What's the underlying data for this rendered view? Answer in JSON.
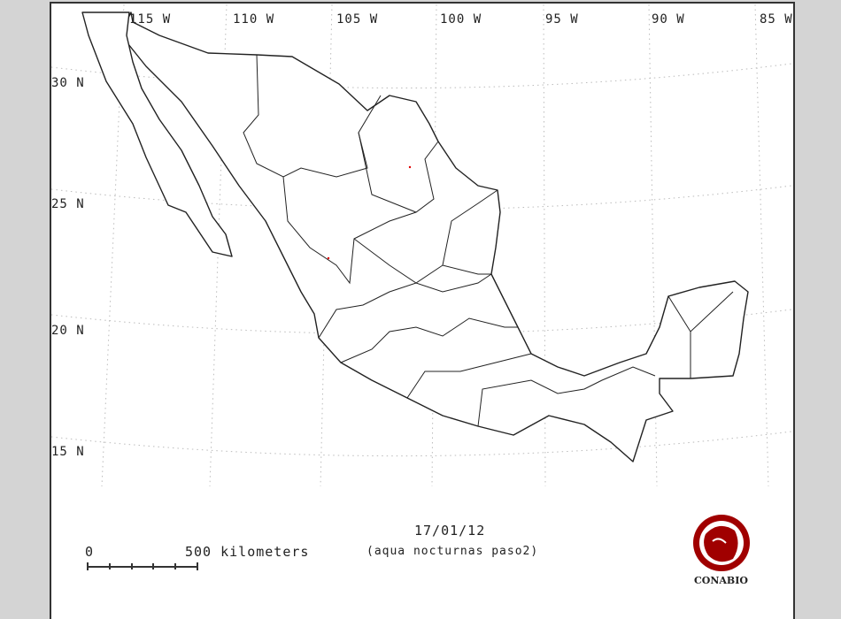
{
  "map": {
    "longitude_labels": [
      "115 W",
      "110 W",
      "105 W",
      "100 W",
      "95 W",
      "90 W",
      "85 W"
    ],
    "latitude_labels": [
      "30 N",
      "25 N",
      "20 N",
      "15 N"
    ],
    "grid": "dotted graticule",
    "land_color": "#ffffff",
    "outline_color": "#222222",
    "hotspot_color": "#e00000"
  },
  "legend": {
    "date": "17/01/12",
    "subtitle": "(aqua nocturnas paso2)",
    "scale_start": "0",
    "scale_end": "500 kilometers"
  },
  "logo": {
    "text": "CONABIO",
    "color": "#a00000"
  }
}
